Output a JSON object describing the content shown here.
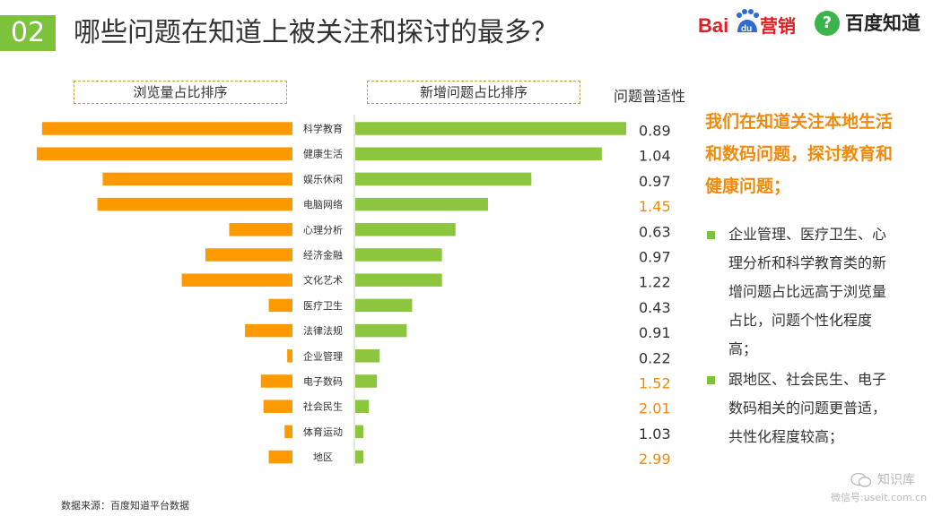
{
  "header": {
    "slide_number": "02",
    "title": "哪些问题在知道上被关注和探讨的最多？",
    "logo_baidu_text": "Bai营销",
    "logo_zhidao_text": "百度知道"
  },
  "chart_data": {
    "type": "bar",
    "categories": [
      "科学教育",
      "健康生活",
      "娱乐休闲",
      "电脑网络",
      "心理分析",
      "经济金融",
      "文化艺术",
      "医疗卫生",
      "法律法规",
      "企业管理",
      "电子数码",
      "社会民生",
      "体育运动",
      "地区"
    ],
    "series": [
      {
        "name": "浏览量占比排序",
        "color": "#ff9900",
        "values": [
          9.5,
          9.7,
          7.2,
          7.4,
          2.4,
          3.3,
          4.2,
          0.9,
          1.8,
          0.2,
          1.2,
          1.1,
          0.3,
          0.9
        ]
      },
      {
        "name": "新增问题占比排序",
        "color": "#8cc63e",
        "values": [
          10.0,
          9.1,
          6.5,
          4.9,
          3.7,
          3.2,
          3.2,
          2.1,
          1.9,
          0.9,
          0.8,
          0.5,
          0.3,
          0.3
        ]
      }
    ],
    "column_header": "问题普适性",
    "popularity_values": [
      "0.89",
      "1.04",
      "0.97",
      "1.45",
      "0.63",
      "0.97",
      "1.22",
      "0.43",
      "0.91",
      "0.22",
      "1.52",
      "2.01",
      "1.03",
      "2.99"
    ],
    "highlighted_popularity": [
      "1.45",
      "1.52",
      "2.01",
      "2.99"
    ],
    "highlight_color": "#f08a0c",
    "normal_color": "#333333"
  },
  "right_panel": {
    "headline": "我们在知道关注本地生活和数码问题，探讨教育和健康问题；",
    "bullets": [
      "企业管理、医疗卫生、心理分析和科学教育类的新增问题占比远高于浏览量占比，问题个性化程度高；",
      "跟地区、社会民生、电子数码相关的问题更普适，共性化程度较高；"
    ]
  },
  "footer": {
    "source": "数据来源：百度知道平台数据",
    "watermark_name": "知识库",
    "watermark_sub": "微信号:useit.com.cn"
  }
}
